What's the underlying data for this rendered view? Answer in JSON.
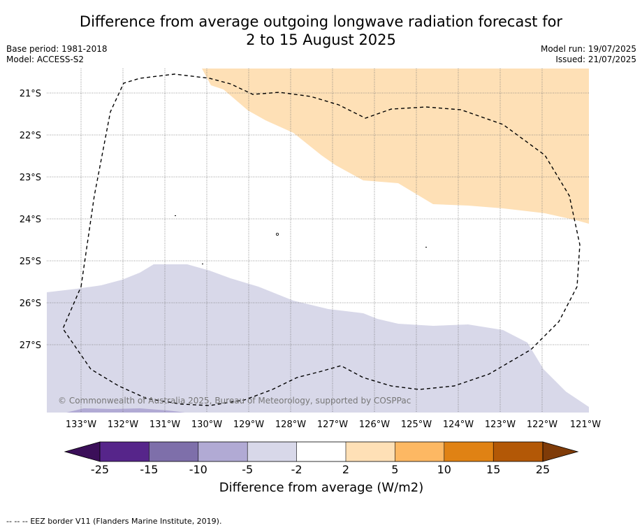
{
  "title_line1": "Difference from average outgoing longwave radiation forecast for",
  "title_line2": "2 to 15 August 2025",
  "meta": {
    "base_period": "Base period: 1981-2018",
    "model": "Model: ACCESS-S2",
    "model_run": "Model run: 19/07/2025",
    "issued": "Issued: 21/07/2025"
  },
  "copyright": "© Commonwealth of Australia 2025, Bureau of Meteorology, supported by COSPPac",
  "lat_labels": [
    "21°S",
    "22°S",
    "23°S",
    "24°S",
    "25°S",
    "26°S",
    "27°S"
  ],
  "lon_labels": [
    "133°W",
    "132°W",
    "131°W",
    "130°W",
    "129°W",
    "128°W",
    "127°W",
    "126°W",
    "125°W",
    "124°W",
    "123°W",
    "122°W",
    "121°W"
  ],
  "colorbar": {
    "label": "Difference from average (W/m2)",
    "ticks": [
      "-25",
      "-15",
      "-10",
      "-5",
      "-2",
      "2",
      "5",
      "10",
      "15",
      "25"
    ],
    "colors": [
      "#3b0f59",
      "#56258a",
      "#7e6faa",
      "#b1aad4",
      "#d8d8e9",
      "#ffffff",
      "#fee0b6",
      "#fdb863",
      "#e08214",
      "#b35806",
      "#7f3b08"
    ]
  },
  "legend_line": "EEZ border V11 (Flanders Marine Institute, 2019).",
  "legend_symbol": "-- -- --"
}
